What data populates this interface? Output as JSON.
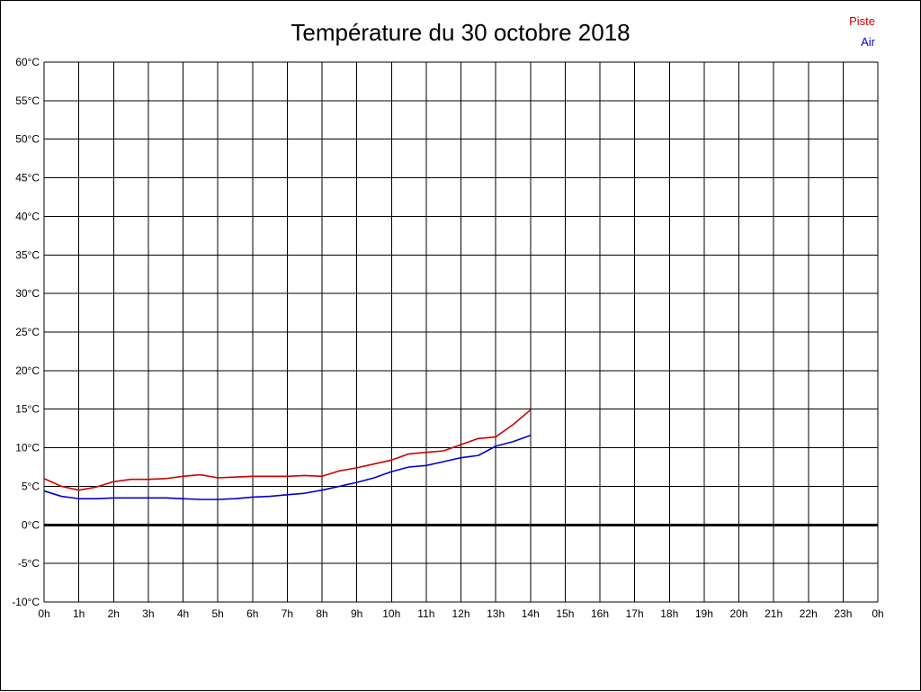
{
  "title": "Température du 30 octobre 2018",
  "legend": {
    "piste": {
      "label": "Piste",
      "color": "#cc0000"
    },
    "air": {
      "label": "Air",
      "color": "#0000cc"
    }
  },
  "chart_data": {
    "type": "line",
    "title": "Température du 30 octobre 2018",
    "xlabel": "",
    "ylabel": "",
    "ylim": [
      -10,
      60
    ],
    "ytick_step": 5,
    "y_unit": "°C",
    "x_hours_total": 24,
    "grid": true,
    "legend_position": "top-right",
    "zero_line_width": 3,
    "xticks": [
      "0h",
      "1h",
      "2h",
      "3h",
      "4h",
      "5h",
      "6h",
      "7h",
      "8h",
      "9h",
      "10h",
      "11h",
      "12h",
      "13h",
      "14h",
      "15h",
      "16h",
      "17h",
      "18h",
      "19h",
      "20h",
      "21h",
      "22h",
      "23h",
      "0h"
    ],
    "x": [
      0,
      0.5,
      1,
      1.5,
      2,
      2.5,
      3,
      3.5,
      4,
      4.5,
      5,
      5.5,
      6,
      6.5,
      7,
      7.5,
      8,
      8.5,
      9,
      9.5,
      10,
      10.5,
      11,
      11.5,
      12,
      12.5,
      13,
      13.5,
      14
    ],
    "series": [
      {
        "name": "Piste",
        "color": "#cc0000",
        "values": [
          6.0,
          5.0,
          4.5,
          4.9,
          5.6,
          5.9,
          5.9,
          6.0,
          6.3,
          6.5,
          6.1,
          6.2,
          6.3,
          6.3,
          6.3,
          6.4,
          6.3,
          7.0,
          7.4,
          7.9,
          8.4,
          9.2,
          9.4,
          9.6,
          10.4,
          11.2,
          11.4,
          13.0,
          14.9
        ]
      },
      {
        "name": "Air",
        "color": "#0000cc",
        "values": [
          4.4,
          3.7,
          3.4,
          3.4,
          3.5,
          3.5,
          3.5,
          3.5,
          3.4,
          3.3,
          3.3,
          3.4,
          3.6,
          3.7,
          3.9,
          4.1,
          4.5,
          5.0,
          5.5,
          6.1,
          6.9,
          7.5,
          7.7,
          8.2,
          8.7,
          9.0,
          10.2,
          10.8,
          11.6
        ]
      }
    ]
  }
}
